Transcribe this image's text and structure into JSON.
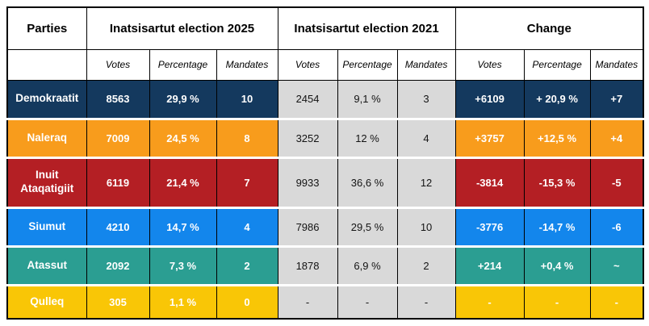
{
  "table": {
    "header": {
      "parties_label": "Parties",
      "groups": [
        "Inatsisartut election 2025",
        "Inatsisartut election 2021",
        "Change"
      ],
      "subcolumns": [
        "Votes",
        "Percentage",
        "Mandates"
      ]
    },
    "colors": {
      "gray_2021_bg": "#d9d9d9",
      "border": "#000000",
      "header_bg": "#ffffff"
    },
    "rows": [
      {
        "party": "Demokraatit",
        "color": "#14395e",
        "e2025": {
          "votes": "8563",
          "pct": "29,9 %",
          "mand": "10"
        },
        "e2021": {
          "votes": "2454",
          "pct": "9,1 %",
          "mand": "3"
        },
        "change": {
          "votes": "+6109",
          "pct": "+ 20,9 %",
          "mand": "+7"
        }
      },
      {
        "party": "Naleraq",
        "color": "#f89c1c",
        "e2025": {
          "votes": "7009",
          "pct": "24,5 %",
          "mand": "8"
        },
        "e2021": {
          "votes": "3252",
          "pct": "12 %",
          "mand": "4"
        },
        "change": {
          "votes": "+3757",
          "pct": "+12,5 %",
          "mand": "+4"
        }
      },
      {
        "party": "Inuit Ataqatigiit",
        "color": "#b41f24",
        "e2025": {
          "votes": "6119",
          "pct": "21,4 %",
          "mand": "7"
        },
        "e2021": {
          "votes": "9933",
          "pct": "36,6 %",
          "mand": "12"
        },
        "change": {
          "votes": "-3814",
          "pct": "-15,3 %",
          "mand": "-5"
        }
      },
      {
        "party": "Siumut",
        "color": "#1386ec",
        "e2025": {
          "votes": "4210",
          "pct": "14,7 %",
          "mand": "4"
        },
        "e2021": {
          "votes": "7986",
          "pct": "29,5 %",
          "mand": "10"
        },
        "change": {
          "votes": "-3776",
          "pct": "-14,7 %",
          "mand": "-6"
        }
      },
      {
        "party": "Atassut",
        "color": "#2b9e92",
        "e2025": {
          "votes": "2092",
          "pct": "7,3 %",
          "mand": "2"
        },
        "e2021": {
          "votes": "1878",
          "pct": "6,9 %",
          "mand": "2"
        },
        "change": {
          "votes": "+214",
          "pct": "+0,4 %",
          "mand": "~"
        }
      },
      {
        "party": "Qulleq",
        "color": "#f9c606",
        "e2025": {
          "votes": "305",
          "pct": "1,1 %",
          "mand": "0"
        },
        "e2021": {
          "votes": "-",
          "pct": "-",
          "mand": "-"
        },
        "change": {
          "votes": "-",
          "pct": "-",
          "mand": "-"
        }
      }
    ]
  },
  "chart_data": {
    "type": "table",
    "title": "Inatsisartut election results 2025 vs 2021",
    "column_groups": [
      "Parties",
      "Inatsisartut election 2025",
      "Inatsisartut election 2021",
      "Change"
    ],
    "columns": [
      "Party",
      "2025 Votes",
      "2025 Percentage",
      "2025 Mandates",
      "2021 Votes",
      "2021 Percentage",
      "2021 Mandates",
      "Change Votes",
      "Change Percentage",
      "Change Mandates"
    ],
    "rows": [
      [
        "Demokraatit",
        "8563",
        "29,9 %",
        "10",
        "2454",
        "9,1 %",
        "3",
        "+6109",
        "+ 20,9 %",
        "+7"
      ],
      [
        "Naleraq",
        "7009",
        "24,5 %",
        "8",
        "3252",
        "12 %",
        "4",
        "+3757",
        "+12,5 %",
        "+4"
      ],
      [
        "Inuit Ataqatigiit",
        "6119",
        "21,4 %",
        "7",
        "9933",
        "36,6 %",
        "12",
        "-3814",
        "-15,3 %",
        "-5"
      ],
      [
        "Siumut",
        "4210",
        "14,7 %",
        "4",
        "7986",
        "29,5 %",
        "10",
        "-3776",
        "-14,7 %",
        "-6"
      ],
      [
        "Atassut",
        "2092",
        "7,3 %",
        "2",
        "1878",
        "6,9 %",
        "2",
        "+214",
        "+0,4 %",
        "~"
      ],
      [
        "Qulleq",
        "305",
        "1,1 %",
        "0",
        "-",
        "-",
        "-",
        "-",
        "-",
        "-"
      ]
    ],
    "row_colors": [
      "#14395e",
      "#f89c1c",
      "#b41f24",
      "#1386ec",
      "#2b9e92",
      "#f9c606"
    ]
  }
}
